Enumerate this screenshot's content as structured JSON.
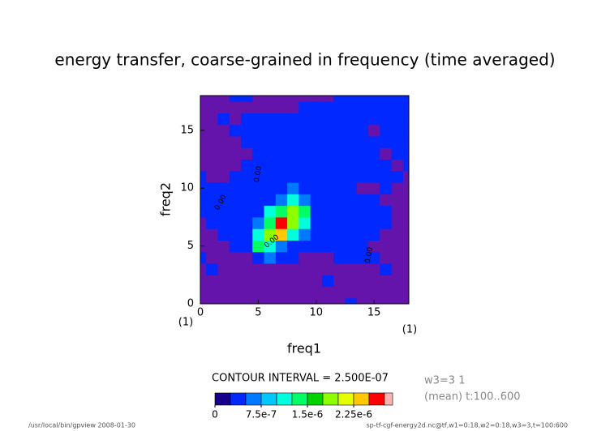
{
  "chart_data": {
    "type": "contour",
    "title": "energy transfer, coarse-grained in frequency (time averaged)",
    "x_label": "freq1",
    "y_label": "freq2",
    "x_unit": "(1)",
    "y_unit": "(1)",
    "xlim": [
      0,
      18
    ],
    "ylim": [
      0,
      18
    ],
    "xticks": [
      0,
      5,
      10,
      15
    ],
    "yticks": [
      0,
      5,
      10,
      15
    ],
    "x": [
      0,
      1,
      2,
      3,
      4,
      5,
      6,
      7,
      8,
      9,
      10,
      11,
      12,
      13,
      14,
      15,
      16,
      17,
      18
    ],
    "y": [
      0,
      1,
      2,
      3,
      4,
      5,
      6,
      7,
      8,
      9,
      10,
      11,
      12,
      13,
      14,
      15,
      16,
      17,
      18
    ],
    "z": [
      [
        -1e-07,
        -1e-07,
        -1e-07,
        -1e-07,
        -1e-07,
        -1e-07,
        -1e-07,
        -1e-07,
        -1e-07,
        -1e-07,
        -1e-07,
        -1e-07,
        -1e-07,
        3e-07,
        -1e-07,
        -1e-07,
        -1e-07,
        -1e-07,
        -1e-07
      ],
      [
        -1e-07,
        -1e-07,
        -1e-07,
        -1e-07,
        -1e-07,
        -1e-07,
        -1e-07,
        -1e-07,
        -1e-07,
        -1e-07,
        -1e-07,
        -1e-07,
        -1e-07,
        -1e-07,
        -1e-07,
        -1e-07,
        -1e-07,
        -1e-07,
        -1e-07
      ],
      [
        -1e-07,
        -1e-07,
        -1e-07,
        -1e-07,
        -1e-07,
        -1e-07,
        -1e-07,
        -1e-07,
        -1e-07,
        -1e-07,
        -1e-07,
        3e-07,
        -1e-07,
        -1e-07,
        -1e-07,
        -1e-07,
        -1e-07,
        -1e-07,
        -1e-07
      ],
      [
        -1e-07,
        3e-07,
        -1e-07,
        -1e-07,
        -1e-07,
        -1e-07,
        -1e-07,
        -1e-07,
        -1e-07,
        -1e-07,
        -1e-07,
        -1e-07,
        -1e-07,
        -1e-07,
        -1e-07,
        -1e-07,
        3e-07,
        -1e-07,
        -1e-07
      ],
      [
        3e-07,
        -1e-07,
        -1e-07,
        -1e-07,
        -1e-07,
        3e-07,
        6e-07,
        3e-07,
        3e-07,
        -1e-07,
        -1e-07,
        -1e-07,
        3e-07,
        3e-07,
        3e-07,
        3e-07,
        -1e-07,
        -1e-07,
        -1e-07
      ],
      [
        -1e-07,
        -1e-07,
        -1e-07,
        3e-07,
        3e-07,
        1.4e-06,
        1.1e-06,
        6e-07,
        3e-07,
        3e-07,
        3e-07,
        3e-07,
        3e-07,
        3e-07,
        3e-07,
        -1e-07,
        -1e-07,
        -1e-07,
        -1e-07
      ],
      [
        -1e-07,
        -1e-07,
        3e-07,
        3e-07,
        3e-07,
        1.1e-06,
        1.9e-06,
        2.3e-06,
        1.1e-06,
        6e-07,
        3e-07,
        3e-07,
        3e-07,
        3e-07,
        3e-07,
        3e-07,
        -1e-07,
        -1e-07,
        -1e-07
      ],
      [
        -1e-07,
        3e-07,
        3e-07,
        3e-07,
        3e-07,
        6e-07,
        1.4e-06,
        2.6e-06,
        1.9e-06,
        1.1e-06,
        3e-07,
        3e-07,
        3e-07,
        3e-07,
        3e-07,
        3e-07,
        3e-07,
        -1e-07,
        -1e-07
      ],
      [
        3e-07,
        3e-07,
        3e-07,
        3e-07,
        3e-07,
        3e-07,
        1.1e-06,
        1.4e-06,
        1.9e-06,
        1.4e-06,
        3e-07,
        3e-07,
        3e-07,
        3e-07,
        3e-07,
        3e-07,
        3e-07,
        -1e-07,
        -1e-07
      ],
      [
        3e-07,
        3e-07,
        3e-07,
        3e-07,
        3e-07,
        3e-07,
        3e-07,
        6e-07,
        1.1e-06,
        6e-07,
        3e-07,
        3e-07,
        3e-07,
        3e-07,
        3e-07,
        3e-07,
        -1e-07,
        -1e-07,
        -1e-07
      ],
      [
        3e-07,
        3e-07,
        3e-07,
        3e-07,
        3e-07,
        3e-07,
        3e-07,
        3e-07,
        6e-07,
        3e-07,
        3e-07,
        3e-07,
        3e-07,
        3e-07,
        -1e-07,
        -1e-07,
        3e-07,
        -1e-07,
        -1e-07
      ],
      [
        3e-07,
        -1e-07,
        -1e-07,
        3e-07,
        3e-07,
        3e-07,
        3e-07,
        3e-07,
        3e-07,
        3e-07,
        3e-07,
        3e-07,
        3e-07,
        3e-07,
        3e-07,
        3e-07,
        3e-07,
        3e-07,
        -1e-07
      ],
      [
        -1e-07,
        -1e-07,
        -1e-07,
        -1e-07,
        3e-07,
        3e-07,
        3e-07,
        3e-07,
        3e-07,
        3e-07,
        3e-07,
        3e-07,
        3e-07,
        3e-07,
        3e-07,
        3e-07,
        3e-07,
        -1e-07,
        3e-07
      ],
      [
        -1e-07,
        -1e-07,
        -1e-07,
        -1e-07,
        -1e-07,
        3e-07,
        3e-07,
        3e-07,
        3e-07,
        3e-07,
        3e-07,
        3e-07,
        3e-07,
        3e-07,
        3e-07,
        3e-07,
        -1e-07,
        3e-07,
        3e-07
      ],
      [
        -1e-07,
        -1e-07,
        -1e-07,
        -1e-07,
        3e-07,
        3e-07,
        3e-07,
        3e-07,
        3e-07,
        3e-07,
        3e-07,
        3e-07,
        3e-07,
        3e-07,
        3e-07,
        3e-07,
        3e-07,
        3e-07,
        3e-07
      ],
      [
        -1e-07,
        -1e-07,
        -1e-07,
        3e-07,
        3e-07,
        3e-07,
        3e-07,
        3e-07,
        3e-07,
        3e-07,
        3e-07,
        3e-07,
        3e-07,
        3e-07,
        3e-07,
        -1e-07,
        3e-07,
        3e-07,
        3e-07
      ],
      [
        -1e-07,
        -1e-07,
        3e-07,
        -1e-07,
        3e-07,
        3e-07,
        3e-07,
        3e-07,
        3e-07,
        3e-07,
        3e-07,
        3e-07,
        3e-07,
        3e-07,
        3e-07,
        3e-07,
        3e-07,
        3e-07,
        3e-07
      ],
      [
        -1e-07,
        -1e-07,
        -1e-07,
        -1e-07,
        -1e-07,
        -1e-07,
        -1e-07,
        -1e-07,
        -1e-07,
        3e-07,
        3e-07,
        3e-07,
        3e-07,
        3e-07,
        3e-07,
        3e-07,
        3e-07,
        3e-07,
        3e-07
      ],
      [
        -1e-07,
        -1e-07,
        -1e-07,
        3e-07,
        3e-07,
        -1e-07,
        -1e-07,
        -1e-07,
        -1e-07,
        -1e-07,
        -1e-07,
        -1e-07,
        3e-07,
        3e-07,
        3e-07,
        3e-07,
        3e-07,
        3e-07,
        3e-07
      ]
    ],
    "levels": [
      0,
      2.5e-07,
      5e-07,
      7.5e-07,
      1e-06,
      1.25e-06,
      1.5e-06,
      1.75e-06,
      2e-06,
      2.25e-06,
      2.5e-06,
      2.75e-06
    ],
    "colors": [
      "#14008c",
      "#0028ff",
      "#0078ff",
      "#00c8ff",
      "#00ffdc",
      "#00ff64",
      "#00d200",
      "#8cff00",
      "#e6ff00",
      "#ffc800",
      "#ff0000"
    ],
    "below_color": "#6414aa",
    "above_color": "#ffb4b4",
    "colorbar_ticks": [
      0,
      {
        "value": 7.5e-07,
        "label": "7.5e-7"
      },
      {
        "value": 1.5e-06,
        "label": "1.5e-6"
      },
      {
        "value": 2.25e-06,
        "label": "2.25e-6"
      }
    ],
    "contour_interval_label": "CONTOUR INTERVAL = 2.500E-07",
    "contour_labels": [
      "0.00",
      "0.00",
      "0.00",
      "0.00"
    ],
    "info_lines": [
      "w3=3 1",
      "(mean) t:100..600"
    ],
    "footer_left": "/usr/local/bin/gpview  2008-01-30",
    "footer_right": "sp-tf-cgf-energy2d.nc@tf,w1=0:18,w2=0:18,w3=3,t=100:600"
  }
}
